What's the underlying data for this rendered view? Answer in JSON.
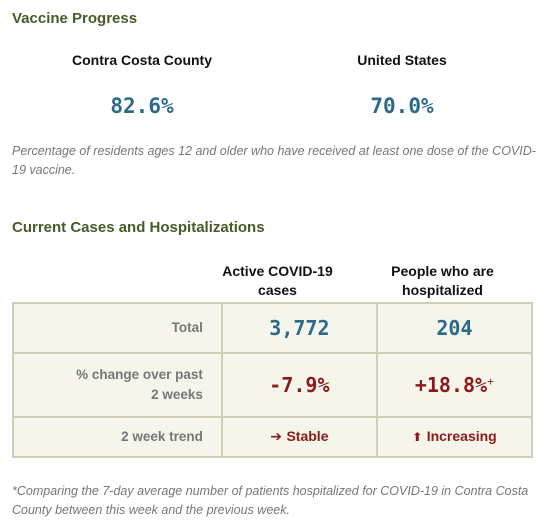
{
  "vaccine": {
    "title": "Vaccine Progress",
    "county_label": "Contra Costa County",
    "us_label": "United States",
    "county_value": "82.6%",
    "us_value": "70.0%",
    "note": "Percentage of residents ages 12 and older who have received at least one dose of the COVID-19 vaccine."
  },
  "cases": {
    "title": "Current Cases and Hospitalizations",
    "col1_header": "Active COVID-19 cases",
    "col2_header": "People who are hospitalized",
    "rows": [
      {
        "label": "Total",
        "col1": "3,772",
        "col2": "204"
      },
      {
        "label": "% change over past 2 weeks",
        "col1": "-7.9%",
        "col2": "+18.8%",
        "col2_mark": "+"
      },
      {
        "label": "2 week trend",
        "col1": "Stable",
        "col2": "Increasing",
        "col1_icon": "right-arrow-icon",
        "col2_icon": "up-arrow-icon"
      }
    ],
    "footnote": "*Comparing the 7-day average number of patients hospitalized for COVID-19 in Contra Costa County between this week and the previous week."
  },
  "colors": {
    "title_green": "#4a5a2a",
    "value_blue": "#2d6a8a",
    "alert_red": "#8b1a1a",
    "table_bg": "#f5f5ec",
    "table_border": "#cfcfb8"
  }
}
